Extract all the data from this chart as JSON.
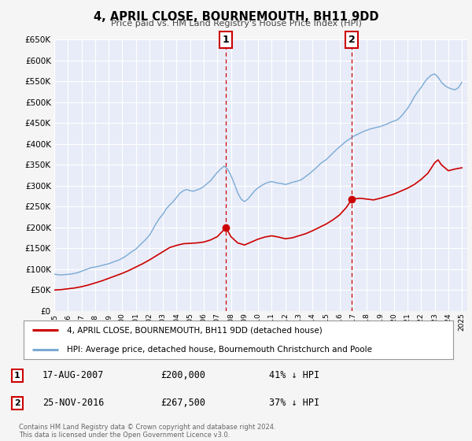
{
  "title": "4, APRIL CLOSE, BOURNEMOUTH, BH11 9DD",
  "subtitle": "Price paid vs. HM Land Registry's House Price Index (HPI)",
  "bg_color": "#f5f5f5",
  "plot_bg_color": "#e8ecf8",
  "grid_color": "#ffffff",
  "hpi_color": "#7aaad4",
  "price_color": "#cc0000",
  "marker_color": "#cc0000",
  "ylim": [
    0,
    650000
  ],
  "yticks": [
    0,
    50000,
    100000,
    150000,
    200000,
    250000,
    300000,
    350000,
    400000,
    450000,
    500000,
    550000,
    600000,
    650000
  ],
  "xlim_start": 1995.0,
  "xlim_end": 2025.4,
  "xticks": [
    1995,
    1996,
    1997,
    1998,
    1999,
    2000,
    2001,
    2002,
    2003,
    2004,
    2005,
    2006,
    2007,
    2008,
    2009,
    2010,
    2011,
    2012,
    2013,
    2014,
    2015,
    2016,
    2017,
    2018,
    2019,
    2020,
    2021,
    2022,
    2023,
    2024,
    2025
  ],
  "marker1_x": 2007.63,
  "marker1_y": 200000,
  "marker1_label": "1",
  "marker1_date": "17-AUG-2007",
  "marker1_price": "£200,000",
  "marker1_pct": "41% ↓ HPI",
  "marker2_x": 2016.9,
  "marker2_y": 267500,
  "marker2_label": "2",
  "marker2_date": "25-NOV-2016",
  "marker2_price": "£267,500",
  "marker2_pct": "37% ↓ HPI",
  "legend_line1": "4, APRIL CLOSE, BOURNEMOUTH, BH11 9DD (detached house)",
  "legend_line2": "HPI: Average price, detached house, Bournemouth Christchurch and Poole",
  "footer": "Contains HM Land Registry data © Crown copyright and database right 2024.\nThis data is licensed under the Open Government Licence v3.0.",
  "hpi_data": [
    [
      1995.0,
      88000
    ],
    [
      1995.25,
      87000
    ],
    [
      1995.5,
      86000
    ],
    [
      1995.75,
      87000
    ],
    [
      1996.0,
      87500
    ],
    [
      1996.25,
      88500
    ],
    [
      1996.5,
      90000
    ],
    [
      1996.75,
      92000
    ],
    [
      1997.0,
      95000
    ],
    [
      1997.25,
      98000
    ],
    [
      1997.5,
      101000
    ],
    [
      1997.75,
      104000
    ],
    [
      1998.0,
      105000
    ],
    [
      1998.25,
      107000
    ],
    [
      1998.5,
      109000
    ],
    [
      1998.75,
      111000
    ],
    [
      1999.0,
      113000
    ],
    [
      1999.25,
      116000
    ],
    [
      1999.5,
      119000
    ],
    [
      1999.75,
      122000
    ],
    [
      2000.0,
      126000
    ],
    [
      2000.25,
      131000
    ],
    [
      2000.5,
      137000
    ],
    [
      2000.75,
      143000
    ],
    [
      2001.0,
      148000
    ],
    [
      2001.25,
      156000
    ],
    [
      2001.5,
      164000
    ],
    [
      2001.75,
      172000
    ],
    [
      2002.0,
      181000
    ],
    [
      2002.25,
      195000
    ],
    [
      2002.5,
      210000
    ],
    [
      2002.75,
      222000
    ],
    [
      2003.0,
      232000
    ],
    [
      2003.25,
      245000
    ],
    [
      2003.5,
      254000
    ],
    [
      2003.75,
      262000
    ],
    [
      2004.0,
      272000
    ],
    [
      2004.25,
      282000
    ],
    [
      2004.5,
      288000
    ],
    [
      2004.75,
      291000
    ],
    [
      2005.0,
      288000
    ],
    [
      2005.25,
      287000
    ],
    [
      2005.5,
      290000
    ],
    [
      2005.75,
      293000
    ],
    [
      2006.0,
      298000
    ],
    [
      2006.25,
      305000
    ],
    [
      2006.5,
      312000
    ],
    [
      2006.75,
      322000
    ],
    [
      2007.0,
      332000
    ],
    [
      2007.25,
      340000
    ],
    [
      2007.5,
      347000
    ],
    [
      2007.75,
      340000
    ],
    [
      2008.0,
      325000
    ],
    [
      2008.25,
      305000
    ],
    [
      2008.5,
      283000
    ],
    [
      2008.75,
      268000
    ],
    [
      2009.0,
      262000
    ],
    [
      2009.25,
      268000
    ],
    [
      2009.5,
      278000
    ],
    [
      2009.75,
      288000
    ],
    [
      2010.0,
      295000
    ],
    [
      2010.25,
      300000
    ],
    [
      2010.5,
      305000
    ],
    [
      2010.75,
      308000
    ],
    [
      2011.0,
      310000
    ],
    [
      2011.25,
      308000
    ],
    [
      2011.5,
      306000
    ],
    [
      2011.75,
      305000
    ],
    [
      2012.0,
      303000
    ],
    [
      2012.25,
      305000
    ],
    [
      2012.5,
      308000
    ],
    [
      2012.75,
      310000
    ],
    [
      2013.0,
      312000
    ],
    [
      2013.25,
      316000
    ],
    [
      2013.5,
      322000
    ],
    [
      2013.75,
      328000
    ],
    [
      2014.0,
      335000
    ],
    [
      2014.25,
      342000
    ],
    [
      2014.5,
      350000
    ],
    [
      2014.75,
      357000
    ],
    [
      2015.0,
      362000
    ],
    [
      2015.25,
      370000
    ],
    [
      2015.5,
      378000
    ],
    [
      2015.75,
      386000
    ],
    [
      2016.0,
      393000
    ],
    [
      2016.25,
      400000
    ],
    [
      2016.5,
      407000
    ],
    [
      2016.75,
      412000
    ],
    [
      2017.0,
      418000
    ],
    [
      2017.25,
      422000
    ],
    [
      2017.5,
      426000
    ],
    [
      2017.75,
      430000
    ],
    [
      2018.0,
      433000
    ],
    [
      2018.25,
      436000
    ],
    [
      2018.5,
      438000
    ],
    [
      2018.75,
      440000
    ],
    [
      2019.0,
      442000
    ],
    [
      2019.25,
      445000
    ],
    [
      2019.5,
      448000
    ],
    [
      2019.75,
      452000
    ],
    [
      2020.0,
      455000
    ],
    [
      2020.25,
      458000
    ],
    [
      2020.5,
      465000
    ],
    [
      2020.75,
      475000
    ],
    [
      2021.0,
      485000
    ],
    [
      2021.25,
      498000
    ],
    [
      2021.5,
      513000
    ],
    [
      2021.75,
      525000
    ],
    [
      2022.0,
      535000
    ],
    [
      2022.25,
      548000
    ],
    [
      2022.5,
      558000
    ],
    [
      2022.75,
      565000
    ],
    [
      2023.0,
      568000
    ],
    [
      2023.25,
      560000
    ],
    [
      2023.5,
      548000
    ],
    [
      2023.75,
      540000
    ],
    [
      2024.0,
      535000
    ],
    [
      2024.25,
      532000
    ],
    [
      2024.5,
      530000
    ],
    [
      2024.75,
      535000
    ],
    [
      2025.0,
      548000
    ]
  ],
  "price_data": [
    [
      1995.0,
      50000
    ],
    [
      1995.5,
      51000
    ],
    [
      1996.0,
      53000
    ],
    [
      1996.5,
      55000
    ],
    [
      1997.0,
      58000
    ],
    [
      1997.5,
      62000
    ],
    [
      1998.0,
      67000
    ],
    [
      1998.5,
      72000
    ],
    [
      1999.0,
      78000
    ],
    [
      1999.5,
      84000
    ],
    [
      2000.0,
      90000
    ],
    [
      2000.5,
      97000
    ],
    [
      2001.0,
      105000
    ],
    [
      2001.5,
      113000
    ],
    [
      2002.0,
      122000
    ],
    [
      2002.5,
      132000
    ],
    [
      2003.0,
      142000
    ],
    [
      2003.5,
      152000
    ],
    [
      2004.0,
      157000
    ],
    [
      2004.5,
      161000
    ],
    [
      2005.0,
      162000
    ],
    [
      2005.5,
      163000
    ],
    [
      2006.0,
      165000
    ],
    [
      2006.5,
      170000
    ],
    [
      2007.0,
      178000
    ],
    [
      2007.5,
      195000
    ],
    [
      2007.63,
      200000
    ],
    [
      2007.75,
      193000
    ],
    [
      2008.0,
      178000
    ],
    [
      2008.5,
      163000
    ],
    [
      2009.0,
      158000
    ],
    [
      2009.5,
      165000
    ],
    [
      2010.0,
      172000
    ],
    [
      2010.5,
      177000
    ],
    [
      2011.0,
      180000
    ],
    [
      2011.5,
      177000
    ],
    [
      2012.0,
      173000
    ],
    [
      2012.5,
      175000
    ],
    [
      2013.0,
      180000
    ],
    [
      2013.5,
      185000
    ],
    [
      2014.0,
      192000
    ],
    [
      2014.5,
      200000
    ],
    [
      2015.0,
      208000
    ],
    [
      2015.5,
      218000
    ],
    [
      2016.0,
      230000
    ],
    [
      2016.5,
      248000
    ],
    [
      2016.9,
      267500
    ],
    [
      2017.0,
      268000
    ],
    [
      2017.5,
      270000
    ],
    [
      2018.0,
      268000
    ],
    [
      2018.5,
      266000
    ],
    [
      2019.0,
      270000
    ],
    [
      2019.5,
      275000
    ],
    [
      2020.0,
      280000
    ],
    [
      2020.5,
      287000
    ],
    [
      2021.0,
      294000
    ],
    [
      2021.5,
      303000
    ],
    [
      2022.0,
      315000
    ],
    [
      2022.5,
      330000
    ],
    [
      2023.0,
      355000
    ],
    [
      2023.25,
      362000
    ],
    [
      2023.5,
      350000
    ],
    [
      2024.0,
      336000
    ],
    [
      2024.5,
      340000
    ],
    [
      2025.0,
      343000
    ]
  ]
}
